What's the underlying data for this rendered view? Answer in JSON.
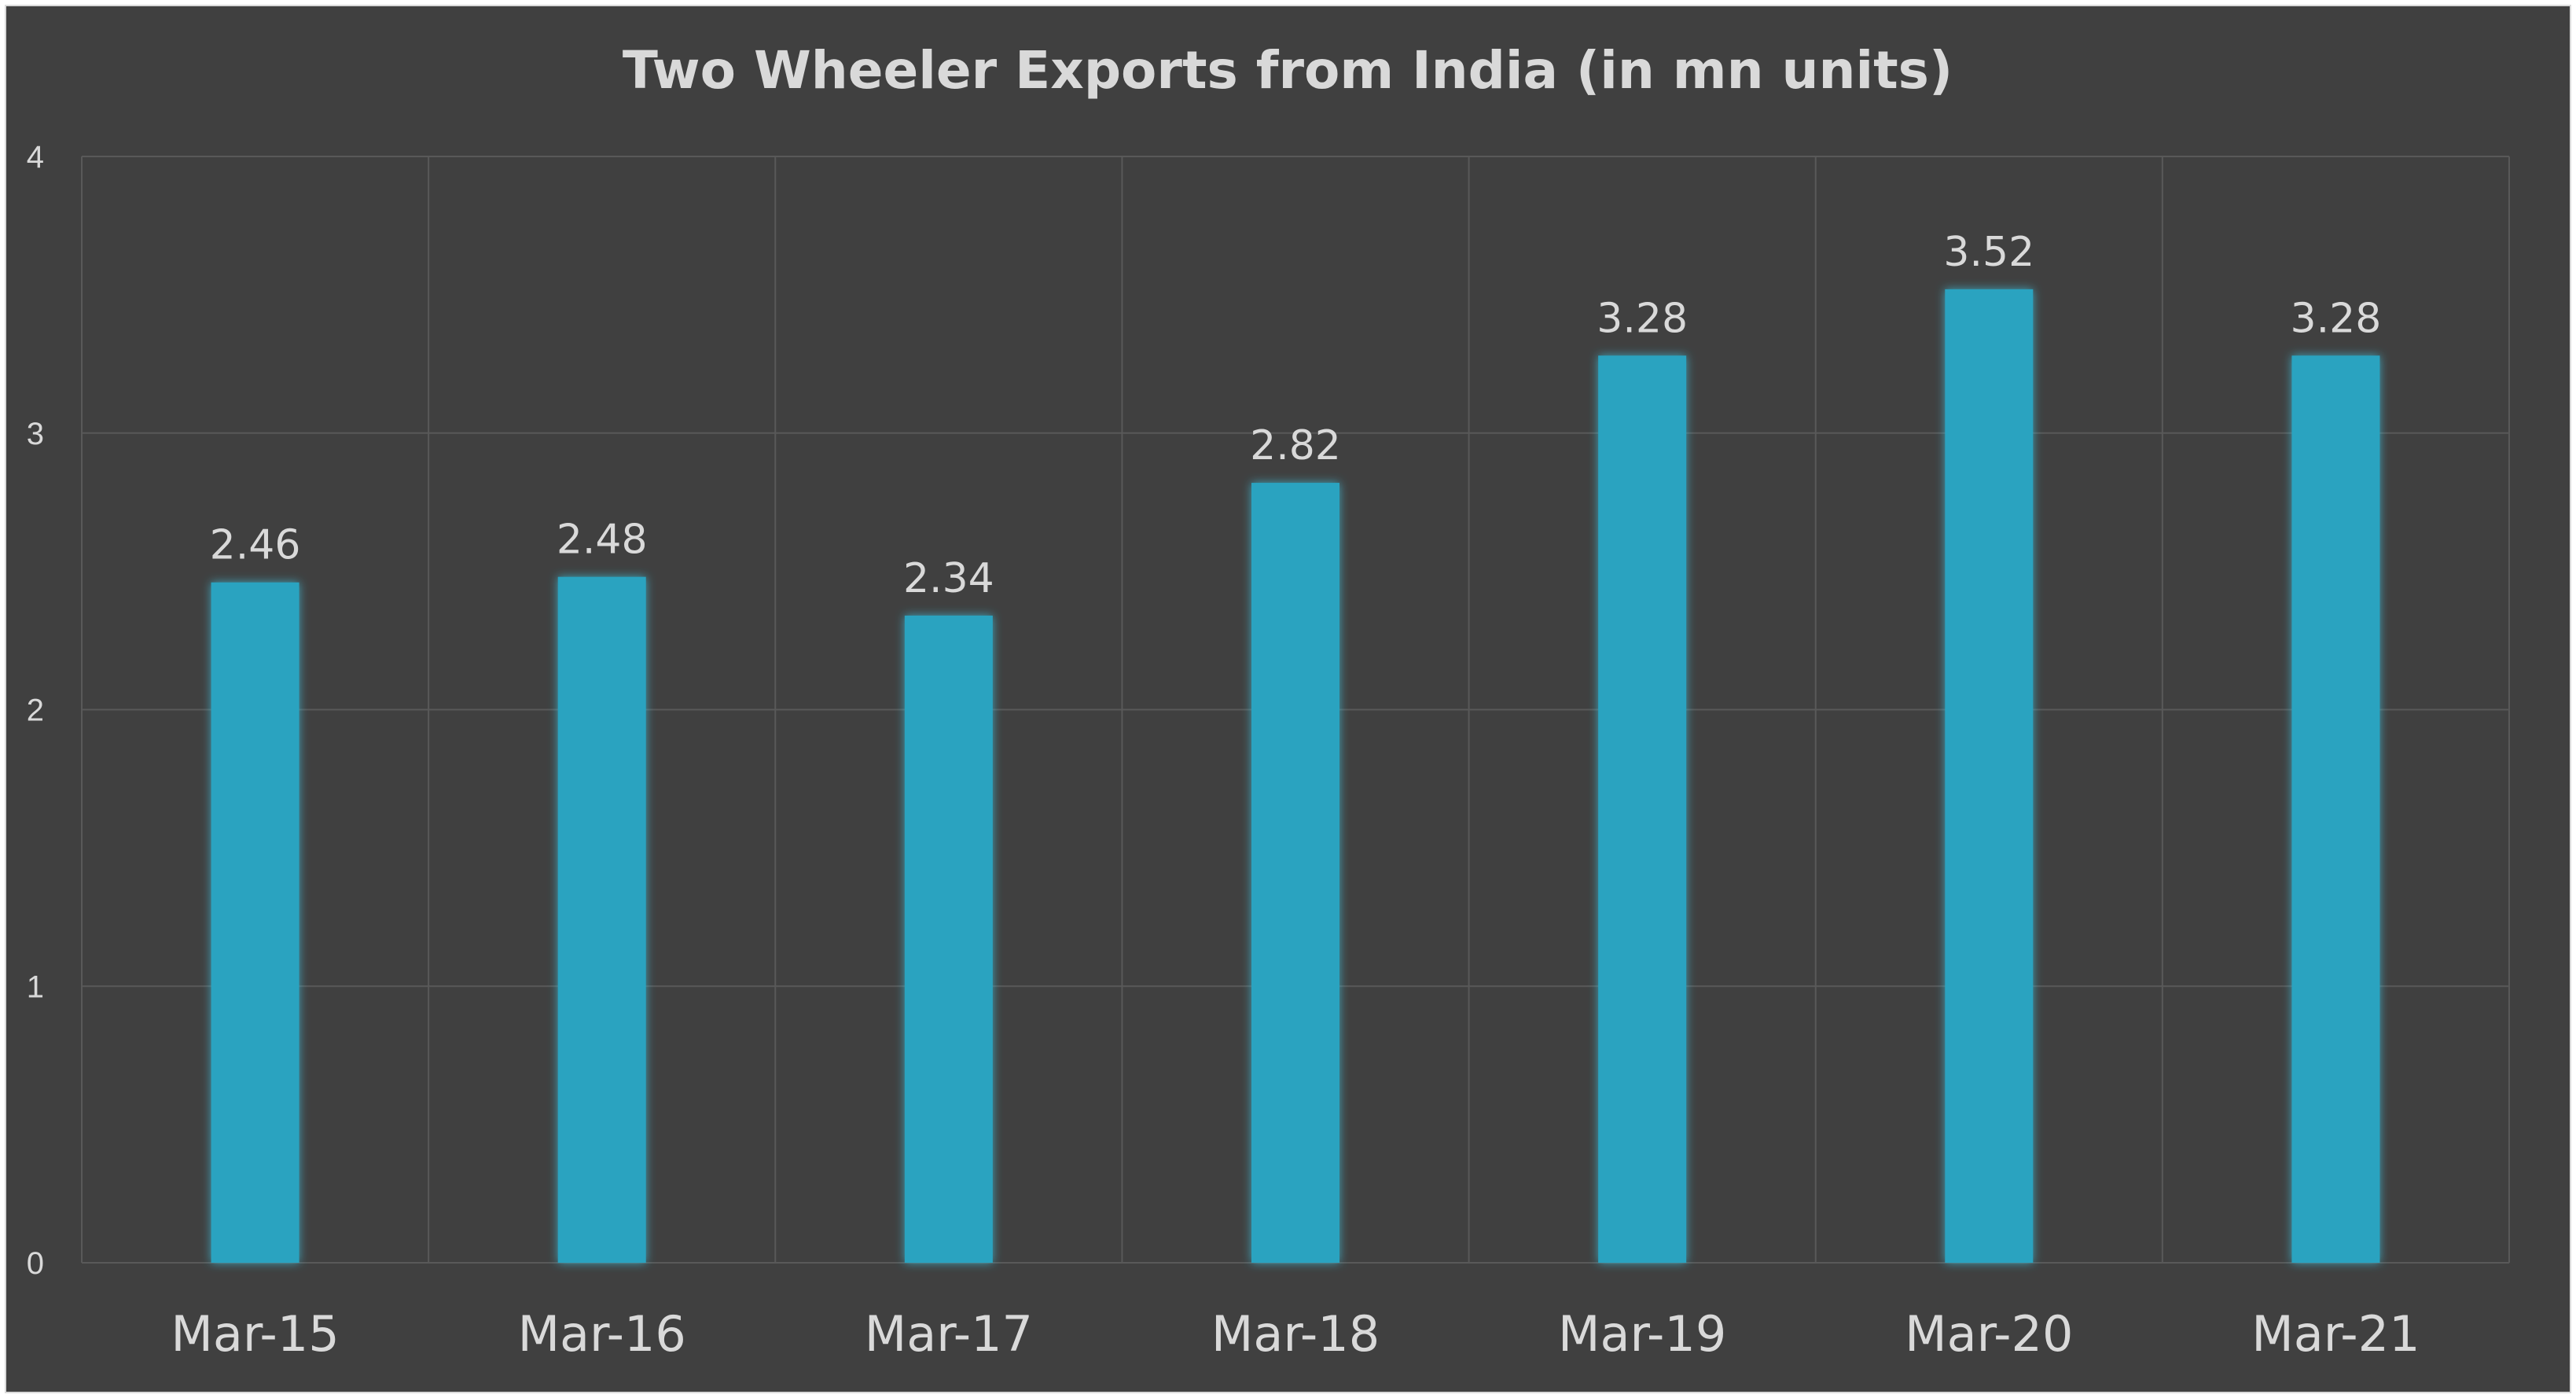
{
  "chart_data": {
    "type": "bar",
    "title": "Two Wheeler Exports from India (in mn units)",
    "xlabel": "",
    "ylabel": "",
    "categories": [
      "Mar-15",
      "Mar-16",
      "Mar-17",
      "Mar-18",
      "Mar-19",
      "Mar-20",
      "Mar-21"
    ],
    "values": [
      2.46,
      2.48,
      2.34,
      2.82,
      3.28,
      3.52,
      3.28
    ],
    "data_labels": [
      "2.46",
      "2.48",
      "2.34",
      "2.82",
      "3.28",
      "3.52",
      "3.28"
    ],
    "yticks": [
      "0",
      "1",
      "2",
      "3",
      "4"
    ],
    "ylim": [
      0,
      4
    ],
    "grid": true,
    "legend": "none",
    "colors": {
      "background": "#404040",
      "bar": "#2aa3c0",
      "bar_glow": "#3ec3e0",
      "text": "#d9d9d9",
      "grid": "#595959"
    }
  }
}
